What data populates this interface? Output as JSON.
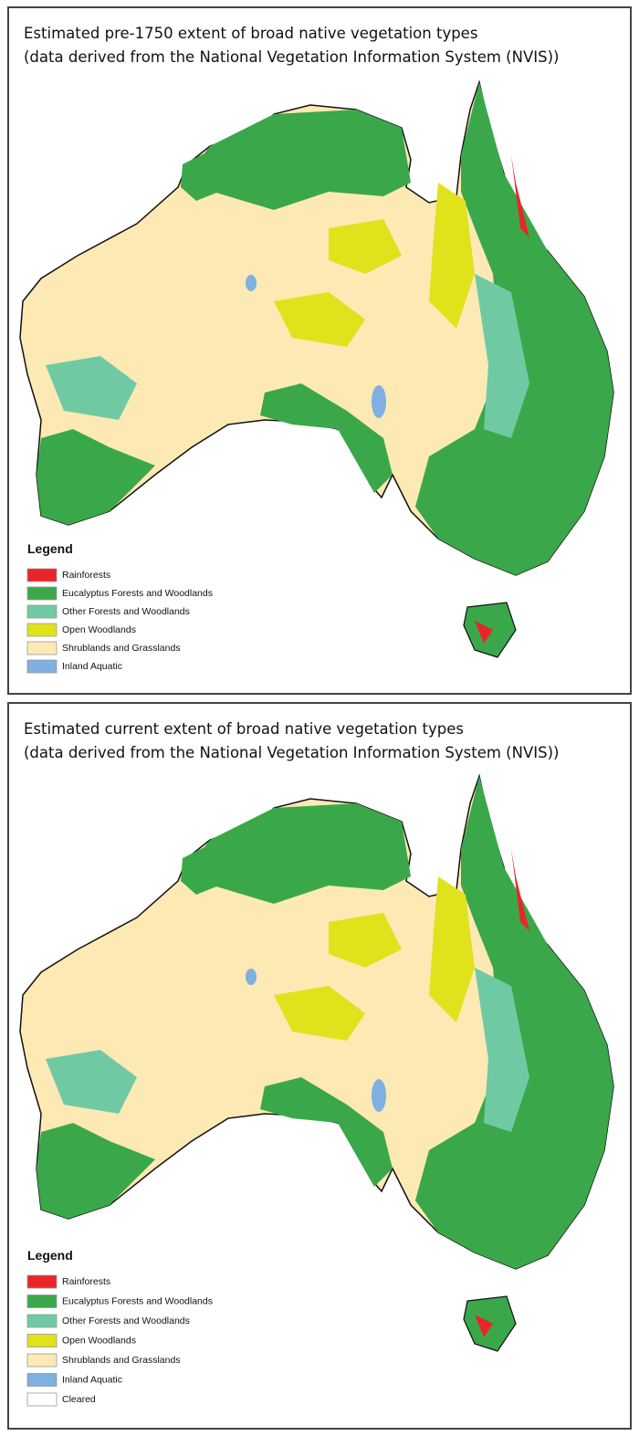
{
  "panels": [
    {
      "title": [
        "Estimated pre-1750 extent of broad native vegetation types",
        "(data derived from the National Vegetation Information System (NVIS))"
      ],
      "legend": {
        "title": "Legend",
        "items": [
          {
            "label": "Rainforests",
            "color": "#e8262a"
          },
          {
            "label": "Eucalyptus Forests and Woodlands",
            "color": "#3aa84a"
          },
          {
            "label": "Other Forests and Woodlands",
            "color": "#6fcaa4"
          },
          {
            "label": "Open Woodlands",
            "color": "#e0e21c"
          },
          {
            "label": "Shrublands and Grasslands",
            "color": "#fde9b4"
          },
          {
            "label": "Inland Aquatic",
            "color": "#7eb0e2"
          }
        ]
      }
    },
    {
      "title": [
        "Estimated current extent of broad native vegetation types",
        "(data derived from the National Vegetation Information System (NVIS))"
      ],
      "legend": {
        "title": "Legend",
        "items": [
          {
            "label": "Rainforests",
            "color": "#e8262a"
          },
          {
            "label": "Eucalyptus Forests and Woodlands",
            "color": "#3aa84a"
          },
          {
            "label": "Other Forests and Woodlands",
            "color": "#6fcaa4"
          },
          {
            "label": "Open Woodlands",
            "color": "#e0e21c"
          },
          {
            "label": "Shrublands and Grasslands",
            "color": "#fde9b4"
          },
          {
            "label": "Inland Aquatic",
            "color": "#7eb0e2"
          },
          {
            "label": "Cleared",
            "color": "#ffffff"
          }
        ]
      }
    }
  ]
}
